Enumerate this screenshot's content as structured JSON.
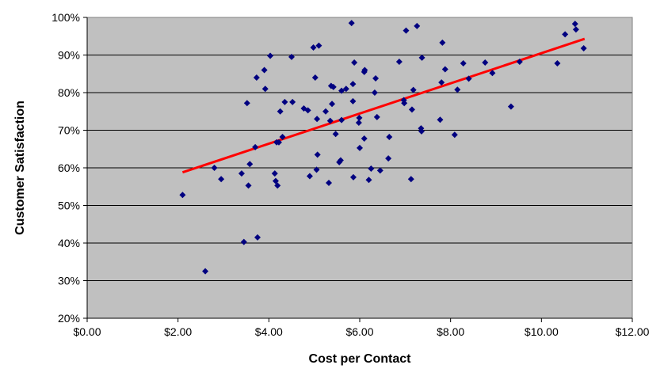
{
  "chart_data": {
    "type": "scatter",
    "title": "",
    "xlabel": "Cost per Contact",
    "ylabel": "Customer Satisfaction",
    "xlim": [
      0,
      12
    ],
    "ylim": [
      20,
      100
    ],
    "x_ticks": [
      0,
      2,
      4,
      6,
      8,
      10,
      12
    ],
    "x_tick_labels": [
      "$0.00",
      "$2.00",
      "$4.00",
      "$6.00",
      "$8.00",
      "$10.00",
      "$12.00"
    ],
    "y_ticks": [
      20,
      30,
      40,
      50,
      60,
      70,
      80,
      90,
      100
    ],
    "y_tick_labels": [
      "20%",
      "30%",
      "40%",
      "50%",
      "60%",
      "70%",
      "80%",
      "90%",
      "100%"
    ],
    "grid": "horizontal",
    "legend": "none",
    "colors": {
      "plot_background": "#c0c0c0",
      "marker": "#000080",
      "trendline": "#ff0000",
      "gridline": "#000000"
    },
    "series": [
      {
        "marker": "diamond",
        "points": [
          [
            2.1,
            52.8
          ],
          [
            2.6,
            32.5
          ],
          [
            2.8,
            60.0
          ],
          [
            2.95,
            57.0
          ],
          [
            3.4,
            58.5
          ],
          [
            3.45,
            40.3
          ],
          [
            3.52,
            77.2
          ],
          [
            3.55,
            55.3
          ],
          [
            3.58,
            61.0
          ],
          [
            3.7,
            65.5
          ],
          [
            3.73,
            84.0
          ],
          [
            3.75,
            41.5
          ],
          [
            3.9,
            86.0
          ],
          [
            3.92,
            81.0
          ],
          [
            4.03,
            89.8
          ],
          [
            4.13,
            58.5
          ],
          [
            4.15,
            56.5
          ],
          [
            4.17,
            66.8
          ],
          [
            4.19,
            55.3
          ],
          [
            4.22,
            66.8
          ],
          [
            4.25,
            75.0
          ],
          [
            4.3,
            68.2
          ],
          [
            4.35,
            77.5
          ],
          [
            4.5,
            89.5
          ],
          [
            4.52,
            77.5
          ],
          [
            4.77,
            75.8
          ],
          [
            4.86,
            75.3
          ],
          [
            4.9,
            57.8
          ],
          [
            4.98,
            92.0
          ],
          [
            5.02,
            84.0
          ],
          [
            5.05,
            59.5
          ],
          [
            5.06,
            73.0
          ],
          [
            5.07,
            63.5
          ],
          [
            5.1,
            92.5
          ],
          [
            5.25,
            75.0
          ],
          [
            5.32,
            56.0
          ],
          [
            5.35,
            72.5
          ],
          [
            5.37,
            81.8
          ],
          [
            5.39,
            77.0
          ],
          [
            5.42,
            81.5
          ],
          [
            5.47,
            69.0
          ],
          [
            5.55,
            61.5
          ],
          [
            5.58,
            62.0
          ],
          [
            5.6,
            72.7
          ],
          [
            5.6,
            80.5
          ],
          [
            5.7,
            81.0
          ],
          [
            5.82,
            98.5
          ],
          [
            5.85,
            82.3
          ],
          [
            5.85,
            77.7
          ],
          [
            5.86,
            57.5
          ],
          [
            5.88,
            88.0
          ],
          [
            5.98,
            72.0
          ],
          [
            5.99,
            73.3
          ],
          [
            6.0,
            65.3
          ],
          [
            6.1,
            67.8
          ],
          [
            6.1,
            85.5
          ],
          [
            6.11,
            86.0
          ],
          [
            6.2,
            56.8
          ],
          [
            6.25,
            59.8
          ],
          [
            6.33,
            80.0
          ],
          [
            6.35,
            83.8
          ],
          [
            6.38,
            73.5
          ],
          [
            6.45,
            59.3
          ],
          [
            6.63,
            62.5
          ],
          [
            6.65,
            68.2
          ],
          [
            6.87,
            88.2
          ],
          [
            6.97,
            78.0
          ],
          [
            6.98,
            77.2
          ],
          [
            7.02,
            96.5
          ],
          [
            7.13,
            57.0
          ],
          [
            7.15,
            75.5
          ],
          [
            7.18,
            80.7
          ],
          [
            7.26,
            97.7
          ],
          [
            7.35,
            70.5
          ],
          [
            7.36,
            69.7
          ],
          [
            7.37,
            89.3
          ],
          [
            7.77,
            72.8
          ],
          [
            7.8,
            82.7
          ],
          [
            7.82,
            93.3
          ],
          [
            7.88,
            86.2
          ],
          [
            8.09,
            68.8
          ],
          [
            8.15,
            80.8
          ],
          [
            8.28,
            87.8
          ],
          [
            8.4,
            83.7
          ],
          [
            8.76,
            88.0
          ],
          [
            8.92,
            85.2
          ],
          [
            9.33,
            76.3
          ],
          [
            9.52,
            88.2
          ],
          [
            10.35,
            87.8
          ],
          [
            10.52,
            95.5
          ],
          [
            10.74,
            98.3
          ],
          [
            10.76,
            96.8
          ],
          [
            10.93,
            91.8
          ]
        ]
      }
    ],
    "trendline": {
      "type": "linear",
      "x": [
        2.1,
        10.95
      ],
      "y": [
        58.8,
        94.3
      ]
    }
  }
}
